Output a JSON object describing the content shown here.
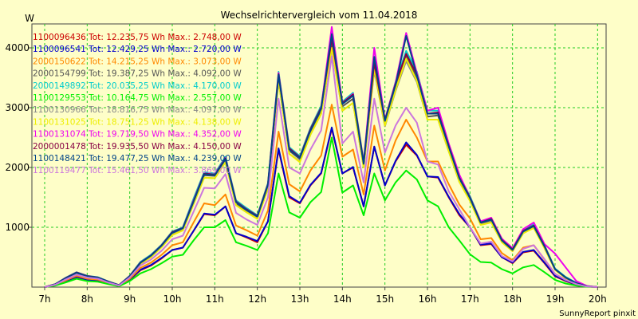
{
  "chart_data": {
    "type": "line",
    "title": "Wechselrichtervergleich vom 11.04.2018",
    "ylabel": "W",
    "xlabel": "",
    "footer": "SunnyReport pinxit",
    "ylim": [
      0,
      4400
    ],
    "xlim": [
      6.7,
      20.2
    ],
    "x_ticks": [
      7,
      8,
      9,
      10,
      11,
      12,
      13,
      14,
      15,
      16,
      17,
      18,
      19,
      20
    ],
    "x_tick_labels": [
      "7h",
      "8h",
      "9h",
      "10h",
      "11h",
      "12h",
      "13h",
      "14h",
      "15h",
      "16h",
      "17h",
      "18h",
      "19h",
      "20h"
    ],
    "y_ticks": [
      1000,
      2000,
      3000,
      4000
    ],
    "y_tick_labels": [
      "1000",
      "2000",
      "3000",
      "4000"
    ],
    "grid": true,
    "legend_position": "top-left",
    "x": [
      7,
      7.25,
      7.5,
      7.75,
      8,
      8.25,
      8.5,
      8.75,
      9,
      9.25,
      9.5,
      9.75,
      10,
      10.25,
      10.5,
      10.75,
      11,
      11.25,
      11.5,
      11.75,
      12,
      12.25,
      12.5,
      12.75,
      13,
      13.25,
      13.5,
      13.75,
      14,
      14.25,
      14.5,
      14.75,
      15,
      15.25,
      15.5,
      15.75,
      16,
      16.25,
      16.5,
      16.75,
      17,
      17.25,
      17.5,
      17.75,
      18,
      18.25,
      18.5,
      18.75,
      19,
      19.25,
      19.5,
      19.75,
      20
    ],
    "series": [
      {
        "name": "1100096436",
        "label": "1100096436 Tot: 12.235,75 Wh Max.: 2.748,00 W",
        "color": "#cc0000",
        "values": [
          0,
          30,
          100,
          170,
          120,
          110,
          60,
          20,
          120,
          280,
          360,
          480,
          620,
          660,
          940,
          1220,
          1200,
          1350,
          900,
          830,
          750,
          1100,
          2300,
          1500,
          1400,
          1700,
          1900,
          2650,
          1900,
          2000,
          1350,
          2350,
          1700,
          2100,
          2380,
          2200,
          1850,
          1830,
          1500,
          1200,
          1000,
          700,
          720,
          500,
          400,
          580,
          610,
          400,
          180,
          100,
          40,
          10,
          0
        ]
      },
      {
        "name": "1100096541",
        "label": "1100096541 Tot: 12.429,25 Wh Max.: 2.720,00 W",
        "color": "#0000cc",
        "values": [
          0,
          30,
          100,
          175,
          125,
          110,
          60,
          20,
          130,
          290,
          370,
          490,
          620,
          660,
          940,
          1230,
          1210,
          1350,
          900,
          840,
          770,
          1100,
          2320,
          1520,
          1410,
          1710,
          1910,
          2670,
          1900,
          2010,
          1350,
          2350,
          1700,
          2110,
          2420,
          2210,
          1850,
          1840,
          1510,
          1220,
          1000,
          710,
          730,
          500,
          410,
          590,
          620,
          410,
          190,
          110,
          40,
          10,
          0
        ]
      },
      {
        "name": "2000150622",
        "label": "2000150622 Tot: 14.215,25 Wh Max.: 3.073,00 W",
        "color": "#ff8800",
        "values": [
          0,
          35,
          115,
          190,
          140,
          125,
          70,
          25,
          140,
          320,
          410,
          540,
          700,
          750,
          1080,
          1400,
          1370,
          1550,
          1030,
          950,
          860,
          1280,
          2600,
          1720,
          1600,
          1950,
          2200,
          3050,
          2180,
          2300,
          1550,
          2700,
          1950,
          2450,
          2800,
          2500,
          2100,
          2100,
          1720,
          1380,
          1150,
          800,
          820,
          570,
          450,
          660,
          700,
          460,
          220,
          120,
          50,
          10,
          0
        ]
      },
      {
        "name": "2000154799",
        "label": "2000154799 Tot: 19.387,25 Wh Max.: 4.092,00 W",
        "color": "#555555",
        "values": [
          0,
          45,
          150,
          240,
          180,
          160,
          90,
          30,
          180,
          400,
          520,
          690,
          900,
          980,
          1420,
          1870,
          1860,
          2130,
          1400,
          1280,
          1170,
          1690,
          3500,
          2280,
          2140,
          2600,
          2950,
          4050,
          3020,
          3150,
          2050,
          3700,
          2750,
          3350,
          3850,
          3500,
          2850,
          2870,
          2320,
          1800,
          1480,
          1070,
          1120,
          780,
          620,
          930,
          1020,
          680,
          300,
          160,
          60,
          15,
          0
        ]
      },
      {
        "name": "2000149892",
        "label": "2000149892 Tot: 20.035,25 Wh Max.: 4.170,00 W",
        "color": "#00cccc",
        "values": [
          0,
          50,
          160,
          250,
          190,
          165,
          95,
          35,
          190,
          420,
          540,
          710,
          930,
          1000,
          1480,
          1920,
          1900,
          2180,
          1450,
          1320,
          1200,
          1740,
          3600,
          2340,
          2190,
          2660,
          3030,
          4150,
          3100,
          3250,
          2100,
          3780,
          2800,
          3430,
          3950,
          3600,
          2950,
          2950,
          2380,
          1850,
          1520,
          1100,
          1150,
          800,
          640,
          960,
          1050,
          700,
          310,
          170,
          70,
          15,
          0
        ]
      },
      {
        "name": "1100129553",
        "label": "1100129553 Tot: 10.164,75 Wh Max.: 2.557,00 W",
        "color": "#00ee00",
        "values": [
          0,
          25,
          80,
          140,
          100,
          90,
          50,
          15,
          100,
          230,
          300,
          400,
          510,
          540,
          780,
          1000,
          1000,
          1120,
          750,
          690,
          620,
          900,
          1900,
          1250,
          1160,
          1420,
          1590,
          2500,
          1580,
          1700,
          1200,
          1900,
          1450,
          1750,
          1950,
          1800,
          1450,
          1350,
          1000,
          780,
          550,
          420,
          410,
          300,
          230,
          330,
          370,
          250,
          120,
          60,
          25,
          5,
          0
        ]
      },
      {
        "name": "1100130966",
        "label": "1100130966 Tot: 18.816,75 Wh Max.: 4.097,00 W",
        "color": "#888888",
        "values": [
          0,
          45,
          145,
          230,
          175,
          155,
          85,
          30,
          175,
          390,
          500,
          670,
          880,
          950,
          1390,
          1830,
          1820,
          2090,
          1370,
          1250,
          1150,
          1650,
          3450,
          2230,
          2100,
          2550,
          2900,
          3980,
          2950,
          3080,
          2000,
          3620,
          2690,
          3280,
          3780,
          3430,
          2800,
          2800,
          2270,
          1760,
          1450,
          1050,
          1090,
          760,
          600,
          900,
          1000,
          660,
          290,
          150,
          60,
          15,
          0
        ]
      },
      {
        "name": "1100131025",
        "label": "1100131025 Tot: 18.751,25 Wh Max.: 4.138,00 W",
        "color": "#eeee00",
        "values": [
          0,
          45,
          145,
          235,
          175,
          155,
          85,
          30,
          175,
          390,
          500,
          670,
          870,
          950,
          1390,
          1830,
          1820,
          2090,
          1370,
          1250,
          1140,
          1650,
          3450,
          2230,
          2090,
          2550,
          2900,
          4000,
          2950,
          3080,
          2000,
          3650,
          2700,
          3300,
          3820,
          3450,
          2800,
          2800,
          2270,
          1760,
          1440,
          1040,
          1080,
          750,
          600,
          900,
          990,
          650,
          290,
          150,
          60,
          15,
          0
        ]
      },
      {
        "name": "1100131074",
        "label": "1100131074 Tot: 19.719,50 Wh Max.: 4.352,00 W",
        "color": "#ee00ee",
        "values": [
          0,
          50,
          155,
          245,
          185,
          160,
          90,
          35,
          185,
          410,
          530,
          700,
          920,
          990,
          1450,
          1900,
          1880,
          2160,
          1430,
          1300,
          1190,
          1720,
          3580,
          2320,
          2170,
          2640,
          3000,
          4350,
          3080,
          3230,
          2080,
          4000,
          2800,
          3420,
          4250,
          3580,
          2950,
          3000,
          2400,
          1880,
          1500,
          1100,
          1160,
          810,
          650,
          970,
          1080,
          720,
          560,
          330,
          100,
          20,
          0
        ]
      },
      {
        "name": "2000001478",
        "label": "2000001478 Tot: 19.935,50 Wh Max.: 4.150,00 W",
        "color": "#880044",
        "values": [
          0,
          48,
          155,
          245,
          185,
          162,
          92,
          32,
          185,
          410,
          530,
          700,
          920,
          990,
          1440,
          1900,
          1880,
          2150,
          1430,
          1300,
          1190,
          1720,
          3560,
          2320,
          2170,
          2640,
          3000,
          4150,
          3080,
          3220,
          2080,
          3750,
          2790,
          3400,
          3900,
          3550,
          2900,
          2920,
          2360,
          1830,
          1500,
          1080,
          1140,
          790,
          630,
          940,
          1030,
          690,
          300,
          160,
          65,
          15,
          0
        ]
      },
      {
        "name": "1100148421",
        "label": "1100148421 Tot: 19.477,25 Wh Max.: 4.239,00 W",
        "color": "#004488",
        "values": [
          0,
          48,
          150,
          240,
          180,
          160,
          90,
          32,
          180,
          405,
          525,
          695,
          910,
          985,
          1430,
          1890,
          1870,
          2140,
          1420,
          1290,
          1180,
          1710,
          3550,
          2300,
          2160,
          2620,
          2980,
          4230,
          3060,
          3200,
          2060,
          3850,
          2780,
          3380,
          4200,
          3540,
          2900,
          2900,
          2350,
          1820,
          1490,
          1080,
          1130,
          780,
          620,
          930,
          1020,
          680,
          300,
          160,
          65,
          15,
          0
        ]
      },
      {
        "name": "1100119477",
        "label": "1100119477 Tot: 15.461,50 Wh Max.: 3.869,00 W",
        "color": "#cc77dd",
        "values": [
          0,
          40,
          130,
          210,
          160,
          140,
          75,
          25,
          160,
          360,
          460,
          610,
          800,
          860,
          1260,
          1660,
          1650,
          1890,
          1240,
          1130,
          1040,
          1500,
          3150,
          2000,
          1900,
          2300,
          2620,
          3860,
          2400,
          2600,
          1750,
          3150,
          2250,
          2700,
          3000,
          2750,
          2100,
          2050,
          1600,
          1300,
          1000,
          730,
          760,
          520,
          430,
          640,
          700,
          470,
          220,
          120,
          50,
          10,
          0
        ]
      }
    ]
  }
}
